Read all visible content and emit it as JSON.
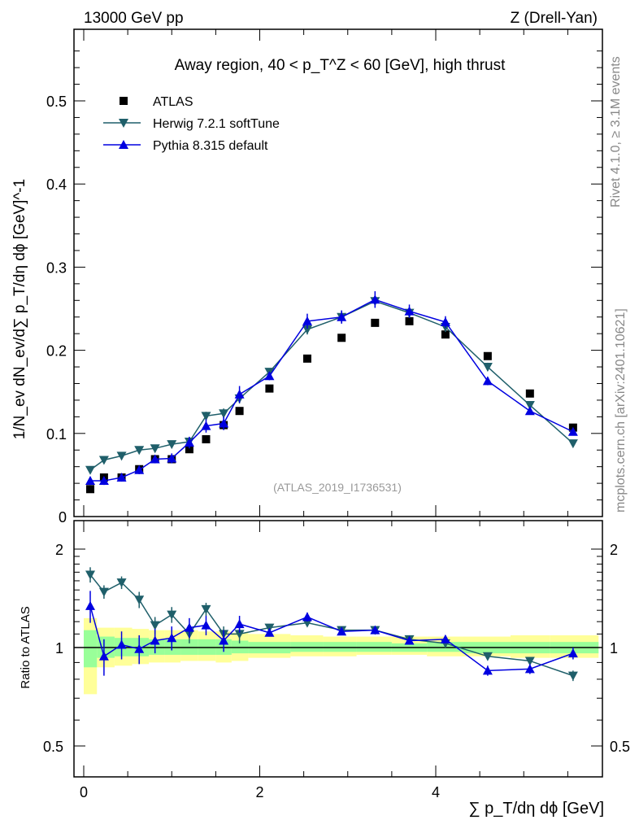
{
  "header": {
    "left": "13000 GeV pp",
    "right": "Z (Drell-Yan)"
  },
  "side_labels": {
    "rivet": "Rivet 4.1.0, ≥ 3.1M events",
    "mcplots": "mcplots.cern.ch [arXiv:2401.10621]"
  },
  "chart_data": {
    "type": "scatter",
    "title": "Away region, 40 < p_T^Z < 60 [GeV], high thrust",
    "analysis_tag": "(ATLAS_2019_I1736531)",
    "xlabel": "∑ p_T/dη dϕ [GeV]",
    "ylabel": "1/N_ev dN_ev/d∑ p_T/dη dϕ [GeV]^-1",
    "ratio_ylabel": "Ratio to ATLAS",
    "xlim": [
      -0.1,
      5.9
    ],
    "ylim": [
      0,
      0.58
    ],
    "ratio_ylim": [
      0.4,
      2.3
    ],
    "ratio_scale": "log",
    "legend_position": "top-left",
    "x_ticks": [
      "0",
      "2",
      "4"
    ],
    "y_ticks": [
      "0",
      "0.1",
      "0.2",
      "0.3",
      "0.4",
      "0.5"
    ],
    "ratio_ticks": [
      "0.5",
      "1",
      "2"
    ],
    "x": [
      0.074,
      0.23,
      0.43,
      0.63,
      0.81,
      1.0,
      1.2,
      1.39,
      1.59,
      1.77,
      2.11,
      2.54,
      2.93,
      3.31,
      3.7,
      4.11,
      4.59,
      5.07,
      5.56
    ],
    "series": [
      {
        "name": "ATLAS",
        "color": "#000000",
        "marker": "square",
        "values": [
          0.033,
          0.047,
          0.047,
          0.057,
          0.069,
          0.069,
          0.081,
          0.093,
          0.11,
          0.127,
          0.154,
          0.19,
          0.215,
          0.233,
          0.235,
          0.219,
          0.193,
          0.148,
          0.107
        ]
      },
      {
        "name": "Herwig 7.2.1 softTune",
        "color": "#1f5f6a",
        "marker": "triangle-down",
        "values": [
          0.056,
          0.068,
          0.073,
          0.08,
          0.082,
          0.087,
          0.09,
          0.121,
          0.124,
          0.142,
          0.174,
          0.225,
          0.24,
          0.259,
          0.245,
          0.228,
          0.18,
          0.134,
          0.088
        ],
        "errors": [
          0.004,
          0.004,
          0.004,
          0.004,
          0.004,
          0.004,
          0.005,
          0.005,
          0.006,
          0.006,
          0.004,
          0.006,
          0.007,
          0.007,
          0.006,
          0.006,
          0.005,
          0.004,
          0.004
        ],
        "ratio": [
          1.67,
          1.48,
          1.58,
          1.4,
          1.17,
          1.26,
          1.1,
          1.31,
          1.1,
          1.1,
          1.15,
          1.19,
          1.13,
          1.13,
          1.06,
          1.03,
          0.94,
          0.91,
          0.82
        ],
        "ratio_errors": [
          0.09,
          0.07,
          0.07,
          0.08,
          0.07,
          0.07,
          0.07,
          0.06,
          0.06,
          0.07,
          0.03,
          0.03,
          0.03,
          0.03,
          0.03,
          0.03,
          0.02,
          0.02,
          0.03
        ]
      },
      {
        "name": "Pythia 8.315 default",
        "color": "#0000e0",
        "marker": "triangle-up",
        "values": [
          0.043,
          0.043,
          0.047,
          0.056,
          0.069,
          0.07,
          0.089,
          0.109,
          0.112,
          0.147,
          0.169,
          0.235,
          0.24,
          0.261,
          0.247,
          0.234,
          0.163,
          0.127,
          0.102
        ],
        "errors": [
          0.005,
          0.005,
          0.005,
          0.005,
          0.005,
          0.006,
          0.007,
          0.008,
          0.008,
          0.01,
          0.005,
          0.009,
          0.008,
          0.01,
          0.008,
          0.007,
          0.005,
          0.004,
          0.004
        ],
        "ratio": [
          1.34,
          0.94,
          1.02,
          0.99,
          1.05,
          1.07,
          1.15,
          1.17,
          1.05,
          1.18,
          1.11,
          1.24,
          1.12,
          1.13,
          1.05,
          1.06,
          0.85,
          0.86,
          0.96
        ],
        "ratio_errors": [
          0.15,
          0.12,
          0.1,
          0.1,
          0.09,
          0.09,
          0.08,
          0.08,
          0.08,
          0.07,
          0.03,
          0.04,
          0.03,
          0.03,
          0.03,
          0.03,
          0.03,
          0.03,
          0.04
        ]
      }
    ],
    "band_bin_edges": [
      0,
      0.15,
      0.35,
      0.55,
      0.74,
      0.92,
      1.1,
      1.3,
      1.5,
      1.68,
      1.87,
      2.35,
      2.72,
      3.1,
      3.5,
      3.9,
      4.3,
      4.85,
      5.3,
      5.85
    ],
    "band_yellow": [
      [
        0.72,
        1.23
      ],
      [
        0.87,
        1.15
      ],
      [
        0.88,
        1.15
      ],
      [
        0.89,
        1.14
      ],
      [
        0.9,
        1.13
      ],
      [
        0.9,
        1.13
      ],
      [
        0.91,
        1.13
      ],
      [
        0.91,
        1.12
      ],
      [
        0.9,
        1.12
      ],
      [
        0.91,
        1.11
      ],
      [
        0.93,
        1.1
      ],
      [
        0.94,
        1.09
      ],
      [
        0.94,
        1.08
      ],
      [
        0.95,
        1.08
      ],
      [
        0.95,
        1.08
      ],
      [
        0.94,
        1.08
      ],
      [
        0.94,
        1.08
      ],
      [
        0.93,
        1.09
      ],
      [
        0.93,
        1.09
      ]
    ],
    "band_green": [
      [
        0.87,
        1.13
      ],
      [
        0.93,
        1.08
      ],
      [
        0.94,
        1.07
      ],
      [
        0.94,
        1.07
      ],
      [
        0.95,
        1.06
      ],
      [
        0.95,
        1.06
      ],
      [
        0.95,
        1.06
      ],
      [
        0.95,
        1.06
      ],
      [
        0.95,
        1.06
      ],
      [
        0.96,
        1.05
      ],
      [
        0.96,
        1.04
      ],
      [
        0.97,
        1.04
      ],
      [
        0.97,
        1.04
      ],
      [
        0.97,
        1.04
      ],
      [
        0.97,
        1.03
      ],
      [
        0.97,
        1.04
      ],
      [
        0.96,
        1.04
      ],
      [
        0.96,
        1.04
      ],
      [
        0.96,
        1.04
      ]
    ]
  }
}
